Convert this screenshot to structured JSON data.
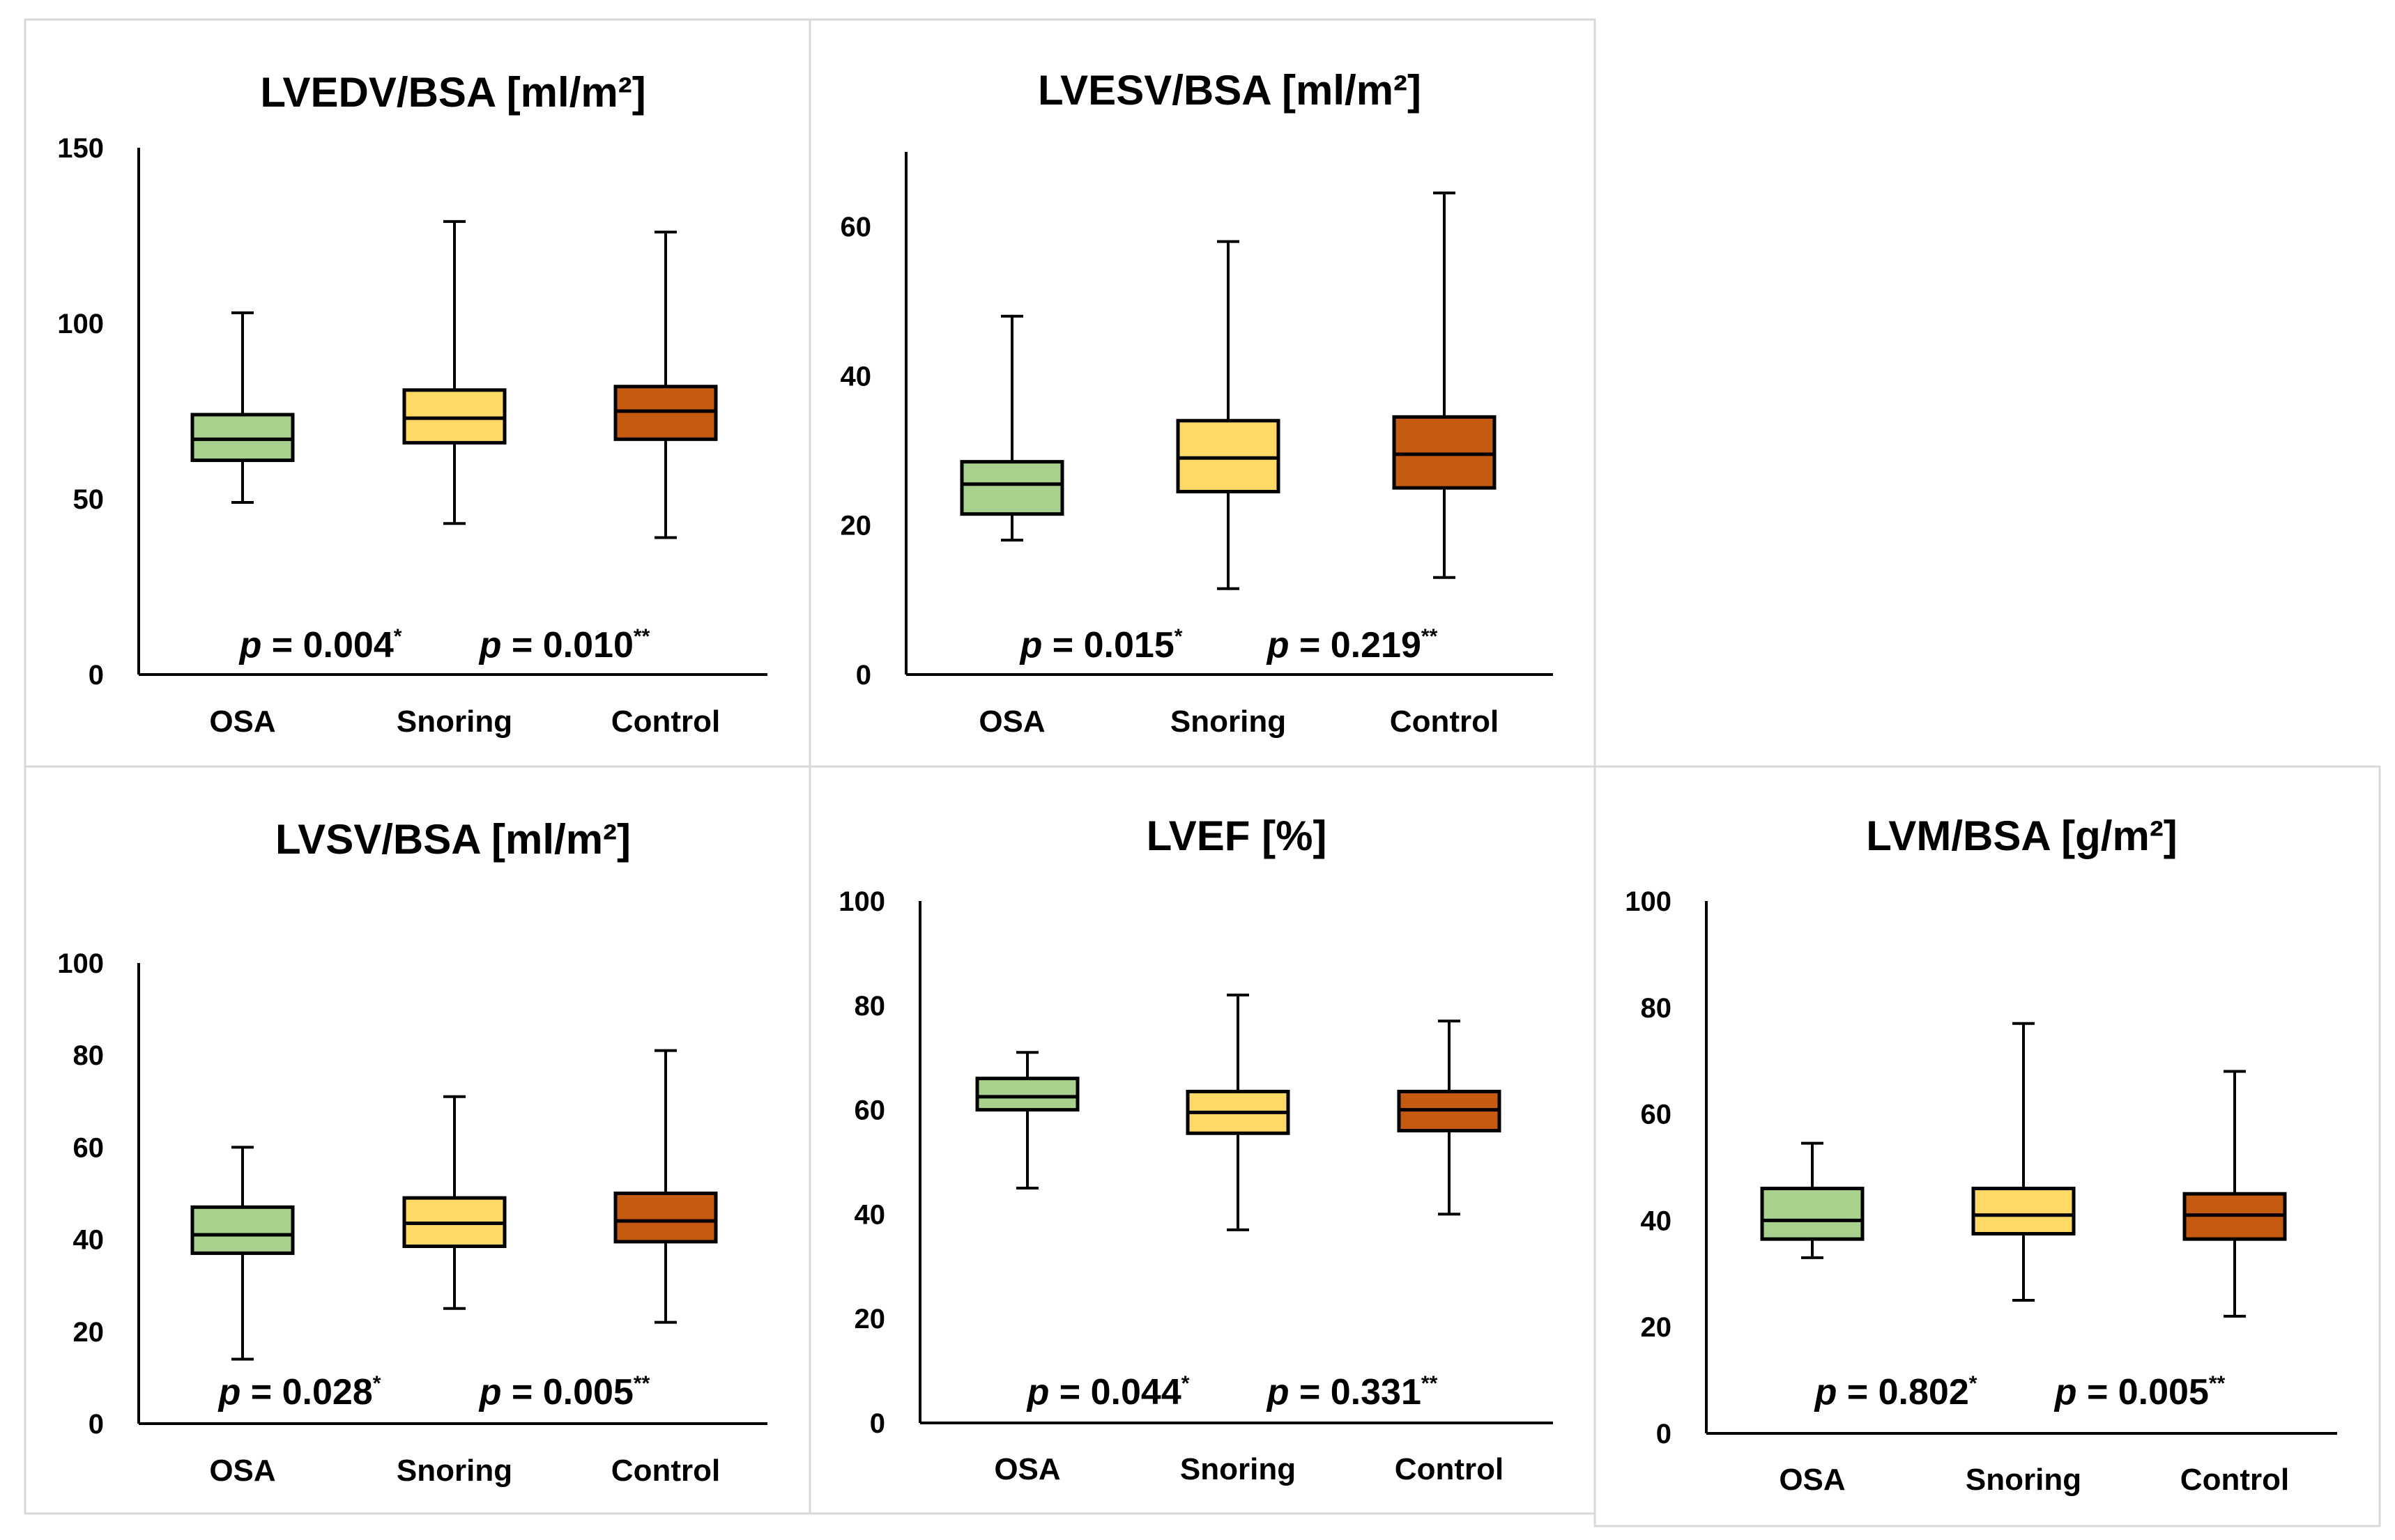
{
  "colors": {
    "OSA": "#a9d18e",
    "Snoring": "#ffd966",
    "Control": "#c55a11"
  },
  "chart_data": [
    {
      "type": "boxplot",
      "title": "LVEDV/BSA [ml/m²]",
      "categories": [
        "OSA",
        "Snoring",
        "Control"
      ],
      "ylim": [
        0,
        150
      ],
      "yticks": [
        "0",
        "50",
        "100",
        "150"
      ],
      "boxes": [
        {
          "min": 49,
          "q1": 61,
          "median": 67,
          "q3": 74,
          "max": 103
        },
        {
          "min": 43,
          "q1": 66,
          "median": 73,
          "q3": 81,
          "max": 129
        },
        {
          "min": 39,
          "q1": 67,
          "median": 75,
          "q3": 82,
          "max": 126
        }
      ],
      "p_values": [
        {
          "p": "p",
          "value": " = 0.004",
          "mark": "*"
        },
        {
          "p": "p",
          "value": " = 0.010",
          "mark": "**"
        }
      ]
    },
    {
      "type": "boxplot",
      "title": "LVESV/BSA [ml/m²]",
      "categories": [
        "OSA",
        "Snoring",
        "Control"
      ],
      "ylim": [
        0,
        70
      ],
      "yticks": [
        "0",
        "20",
        "40",
        "60"
      ],
      "boxes": [
        {
          "min": 18,
          "q1": 21.5,
          "median": 25.5,
          "q3": 28.5,
          "max": 48
        },
        {
          "min": 11.5,
          "q1": 24.5,
          "median": 29,
          "q3": 34,
          "max": 58
        },
        {
          "min": 13,
          "q1": 25,
          "median": 29.5,
          "q3": 34.5,
          "max": 64.5
        }
      ],
      "p_values": [
        {
          "p": "p",
          "value": " = 0.015",
          "mark": "*"
        },
        {
          "p": "p",
          "value": " = 0.219",
          "mark": "**"
        }
      ]
    },
    {
      "type": "boxplot",
      "title": "LVSV/BSA [ml/m²]",
      "categories": [
        "OSA",
        "Snoring",
        "Control"
      ],
      "ylim": [
        0,
        100
      ],
      "yticks": [
        "0",
        "20",
        "40",
        "60",
        "80",
        "100"
      ],
      "boxes": [
        {
          "min": 14,
          "q1": 37,
          "median": 41,
          "q3": 47,
          "max": 60
        },
        {
          "min": 25,
          "q1": 38.5,
          "median": 43.5,
          "q3": 49,
          "max": 71
        },
        {
          "min": 22,
          "q1": 39.5,
          "median": 44,
          "q3": 50,
          "max": 81
        }
      ],
      "p_values": [
        {
          "p": "p",
          "value": " = 0.028",
          "mark": "*"
        },
        {
          "p": "p",
          "value": " = 0.005",
          "mark": "**"
        }
      ]
    },
    {
      "type": "boxplot",
      "title": "LVEF [%]",
      "categories": [
        "OSA",
        "Snoring",
        "Control"
      ],
      "ylim": [
        0,
        100
      ],
      "yticks": [
        "0",
        "20",
        "40",
        "60",
        "80",
        "100"
      ],
      "boxes": [
        {
          "min": 45,
          "q1": 60,
          "median": 62.5,
          "q3": 66,
          "max": 71
        },
        {
          "min": 37,
          "q1": 55.5,
          "median": 59.5,
          "q3": 63.5,
          "max": 82
        },
        {
          "min": 40,
          "q1": 56,
          "median": 60,
          "q3": 63.5,
          "max": 77
        }
      ],
      "p_values": [
        {
          "p": "p",
          "value": " = 0.044",
          "mark": "*"
        },
        {
          "p": "p",
          "value": " = 0.331",
          "mark": "**"
        }
      ]
    },
    {
      "type": "boxplot",
      "title": "LVM/BSA [g/m²]",
      "categories": [
        "OSA",
        "Snoring",
        "Control"
      ],
      "ylim": [
        0,
        100
      ],
      "yticks": [
        "0",
        "20",
        "40",
        "60",
        "80",
        "100"
      ],
      "boxes": [
        {
          "min": 33,
          "q1": 36.5,
          "median": 40,
          "q3": 46,
          "max": 54.5
        },
        {
          "min": 25,
          "q1": 37.5,
          "median": 41,
          "q3": 46,
          "max": 77
        },
        {
          "min": 22,
          "q1": 36.5,
          "median": 41,
          "q3": 45,
          "max": 68
        }
      ],
      "p_values": [
        {
          "p": "p",
          "value": " = 0.802",
          "mark": "*"
        },
        {
          "p": "p",
          "value": " = 0.005",
          "mark": "**"
        }
      ]
    }
  ]
}
